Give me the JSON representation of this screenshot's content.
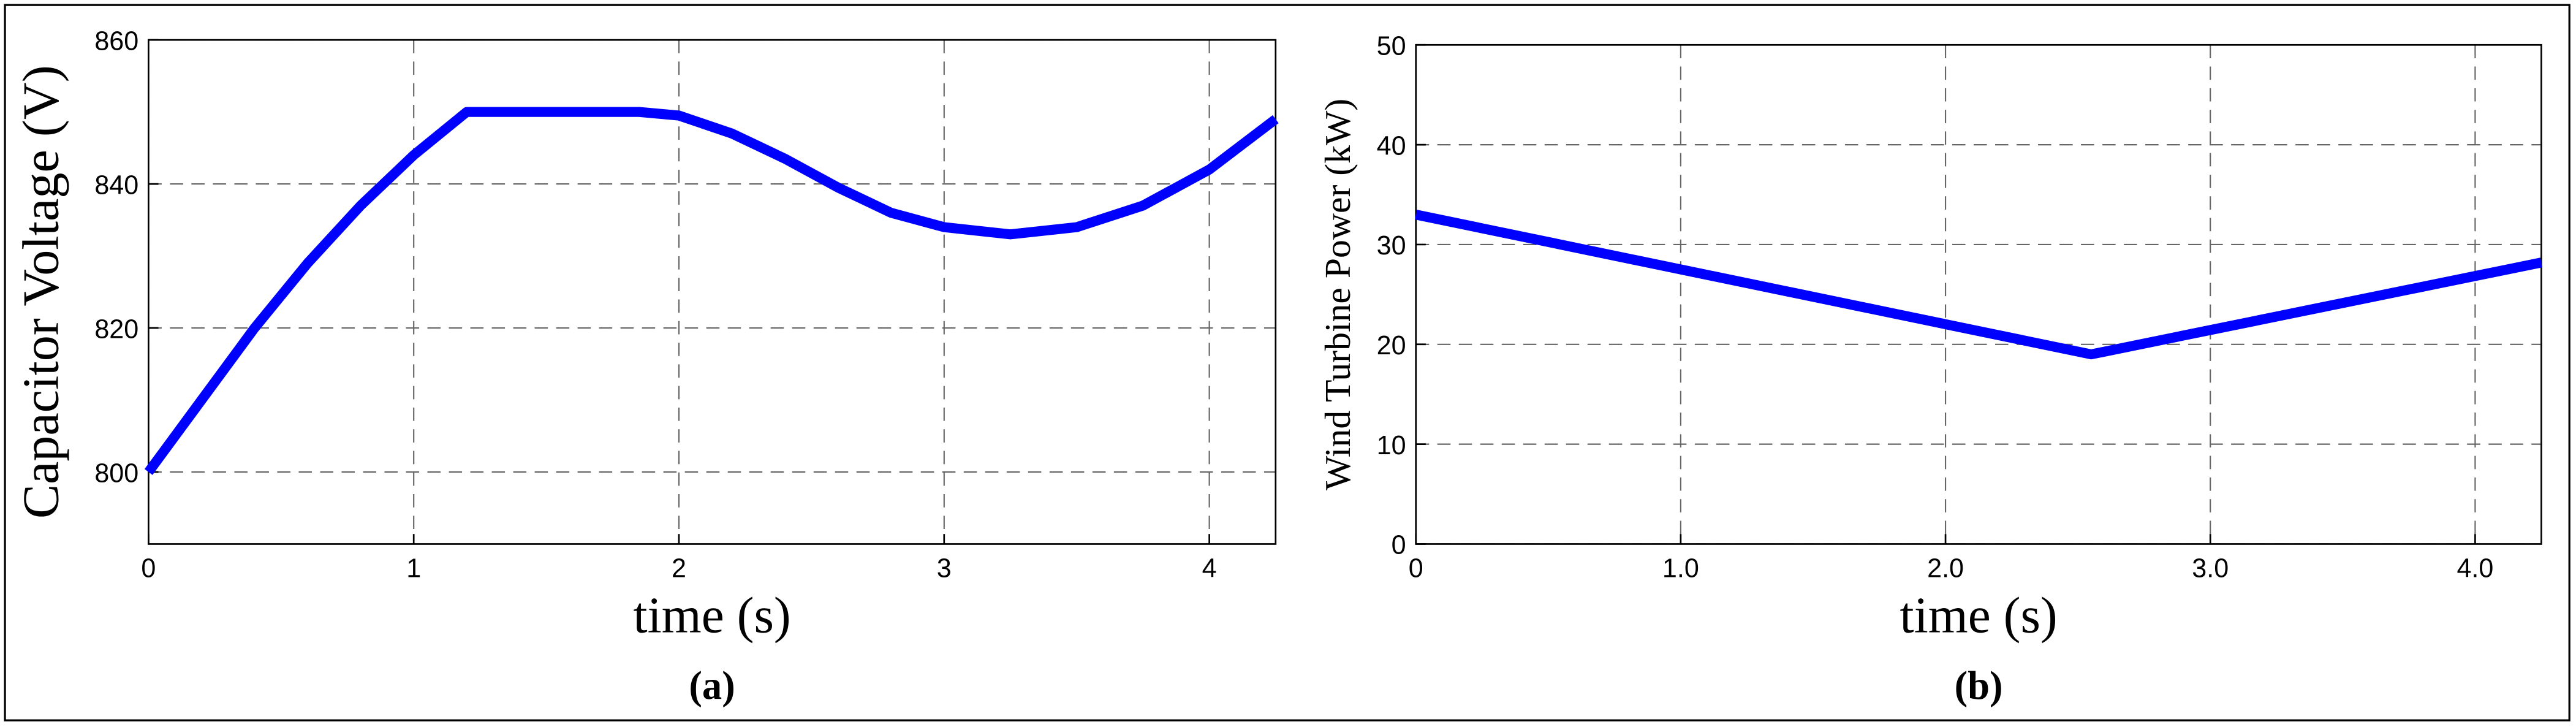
{
  "chart_data": [
    {
      "type": "line",
      "caption": "(a)",
      "xlabel": "time (s)",
      "ylabel": "Capacitor Voltage (V)",
      "x": [
        0,
        0.2,
        0.4,
        0.6,
        0.8,
        1.0,
        1.2,
        1.5,
        1.85,
        2.0,
        2.2,
        2.4,
        2.6,
        2.8,
        3.0,
        3.25,
        3.5,
        3.75,
        4.0,
        4.25
      ],
      "values": [
        800,
        810,
        820,
        829,
        837,
        844,
        850,
        850,
        850,
        849.5,
        847,
        843.5,
        839.5,
        836,
        834,
        833,
        834,
        837,
        842,
        849
      ],
      "color": "#0000ff",
      "xlim": [
        0,
        4.25
      ],
      "ylim": [
        790,
        860
      ],
      "xticks": [
        0,
        1,
        2,
        3,
        4
      ],
      "yticks": [
        800,
        820,
        840,
        860
      ],
      "grid": true
    },
    {
      "type": "line",
      "caption": "(b)",
      "xlabel": "time (s)",
      "ylabel": "Wind Turbine Power (kW)",
      "x": [
        0,
        2.55,
        4.25
      ],
      "values": [
        33,
        19,
        28.2
      ],
      "color": "#0000ff",
      "xlim": [
        0,
        4.25
      ],
      "ylim": [
        0,
        50
      ],
      "xticks": [
        0,
        {
          "value": 1,
          "label": "1.0"
        },
        {
          "value": 2,
          "label": "2.0"
        },
        {
          "value": 3,
          "label": "3.0"
        },
        {
          "value": 4,
          "label": "4.0"
        }
      ],
      "yticks": [
        0,
        10,
        20,
        30,
        40,
        50
      ],
      "grid": true
    }
  ]
}
